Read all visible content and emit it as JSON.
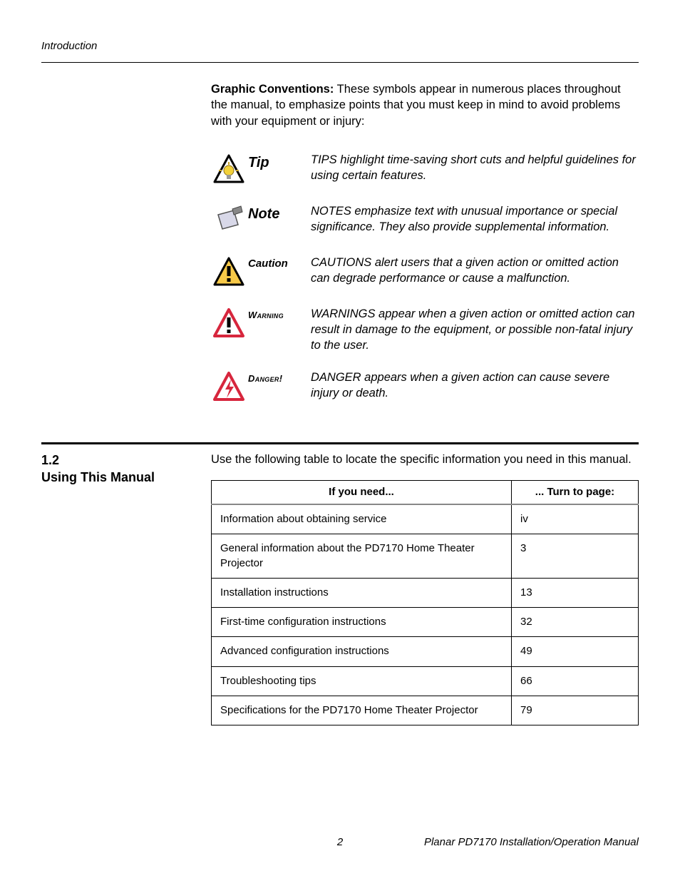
{
  "running_head": "Introduction",
  "graphic_conventions": {
    "lead": "Graphic Conventions:",
    "text": " These symbols appear in numerous places throughout the manual, to emphasize points that you must keep in mind to avoid problems with your equipment or injury:"
  },
  "conventions": [
    {
      "label": "Tip",
      "label_class": "lbl-tip",
      "icon": "tip",
      "desc": "TIPS highlight time-saving short cuts and helpful guidelines for using certain features."
    },
    {
      "label": "Note",
      "label_class": "lbl-note",
      "icon": "note",
      "desc": "NOTES emphasize text with unusual importance or special significance. They also provide supplemental information."
    },
    {
      "label": "Caution",
      "label_class": "lbl-caution",
      "icon": "caution",
      "desc": "CAUTIONS alert users that a given action or omitted action can degrade performance or cause a malfunction."
    },
    {
      "label": "Warning",
      "label_class": "lbl-warning",
      "icon": "warning",
      "desc": "WARNINGS appear when a given action or omitted action can result in damage to the equipment, or possible non-fatal injury to the user."
    },
    {
      "label": "Danger!",
      "label_class": "lbl-danger",
      "icon": "danger",
      "desc": "DANGER appears when a given action can cause severe injury or death."
    }
  ],
  "section": {
    "number": "1.2",
    "title": "Using This Manual",
    "intro": "Use the following table to locate the specific information you need in this manual."
  },
  "table": {
    "headers": [
      "If you need...",
      "... Turn to page:"
    ],
    "rows": [
      [
        "Information about obtaining service",
        "iv"
      ],
      [
        "General information about the PD7170 Home Theater Projector",
        "3"
      ],
      [
        "Installation instructions",
        "13"
      ],
      [
        "First-time configuration instructions",
        "32"
      ],
      [
        "Advanced configuration instructions",
        "49"
      ],
      [
        "Troubleshooting tips",
        "66"
      ],
      [
        "Specifications for the PD7170 Home Theater Projector",
        "79"
      ]
    ]
  },
  "footer": {
    "page_number": "2",
    "doc_title": "Planar PD7170 Installation/Operation Manual"
  },
  "colors": {
    "triangle_outline": "#000000",
    "tip_fill": "#f2d13a",
    "note_fill": "#d8d8e8",
    "caution_fill": "#f7c948",
    "warning_stroke": "#d7263d",
    "danger_stroke": "#d7263d",
    "danger_fill": "#ffffff"
  }
}
